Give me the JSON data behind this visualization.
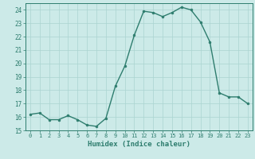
{
  "x": [
    0,
    1,
    2,
    3,
    4,
    5,
    6,
    7,
    8,
    9,
    10,
    11,
    12,
    13,
    14,
    15,
    16,
    17,
    18,
    19,
    20,
    21,
    22,
    23
  ],
  "y": [
    16.2,
    16.3,
    15.8,
    15.8,
    16.1,
    15.8,
    15.4,
    15.3,
    15.9,
    18.3,
    19.8,
    22.1,
    23.9,
    23.8,
    23.5,
    23.8,
    24.2,
    24.0,
    23.1,
    21.6,
    17.8,
    17.5,
    17.5,
    17.0
  ],
  "xlabel": "Humidex (Indice chaleur)",
  "ylim": [
    15,
    24.5
  ],
  "xlim": [
    -0.5,
    23.5
  ],
  "yticks": [
    15,
    16,
    17,
    18,
    19,
    20,
    21,
    22,
    23,
    24
  ],
  "xticks": [
    0,
    1,
    2,
    3,
    4,
    5,
    6,
    7,
    8,
    9,
    10,
    11,
    12,
    13,
    14,
    15,
    16,
    17,
    18,
    19,
    20,
    21,
    22,
    23
  ],
  "line_color": "#2e7d6e",
  "marker_color": "#2e7d6e",
  "bg_color": "#cceae8",
  "grid_color": "#aad4d0",
  "tick_color": "#2e7d6e",
  "label_color": "#2e7d6e"
}
